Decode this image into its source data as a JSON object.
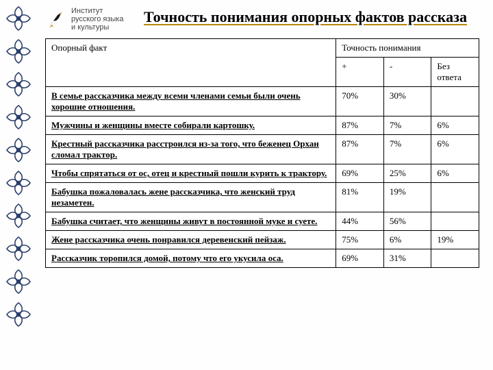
{
  "logo": {
    "line1": "Институт",
    "line2": "русского языка",
    "line3": "и культуры"
  },
  "title": "Точность понимания опорных фактов рассказа",
  "colors": {
    "ornament": "#2a3e6b",
    "title_underline": "#b8860b",
    "border": "#000000",
    "background": "#fefefe",
    "pen_body": "#1a1a1a",
    "pen_nib": "#c99a2e"
  },
  "table": {
    "header_col1": "Опорный факт",
    "header_group": "Точность понимания",
    "header_plus": "+",
    "header_minus": "-",
    "header_noanswer": "Без ответа",
    "rows": [
      {
        "fact": "В семье рассказчика между всеми членами семьи были очень хорошие отношения.",
        "plus": "70%",
        "minus": "30%",
        "noanswer": ""
      },
      {
        "fact": "Мужчины и женщины вместе собирали картошку.",
        "plus": "87%",
        "minus": "7%",
        "noanswer": "6%"
      },
      {
        "fact": "Крестный рассказчика расстроился из-за того, что беженец Орхан сломал трактор.",
        "plus": "87%",
        "minus": "7%",
        "noanswer": "6%"
      },
      {
        "fact": "Чтобы спрятаться от ос, отец и крестный пошли курить к трактору.",
        "plus": "69%",
        "minus": "25%",
        "noanswer": "6%"
      },
      {
        "fact": "Бабушка пожаловалась жене рассказчика, что женский труд незаметен.",
        "plus": "81%",
        "minus": "19%",
        "noanswer": ""
      },
      {
        "fact": "Бабушка считает, что женщины живут в постоянной муке и суете.",
        "plus": "44%",
        "minus": "56%",
        "noanswer": ""
      },
      {
        "fact": "Жене рассказчика очень понравился деревенский пейзаж.",
        "plus": "75%",
        "minus": "6%",
        "noanswer": "19%"
      },
      {
        "fact": "Рассказчик торопился домой, потому что его укусила оса.",
        "plus": "69%",
        "minus": "31%",
        "noanswer": ""
      }
    ]
  }
}
